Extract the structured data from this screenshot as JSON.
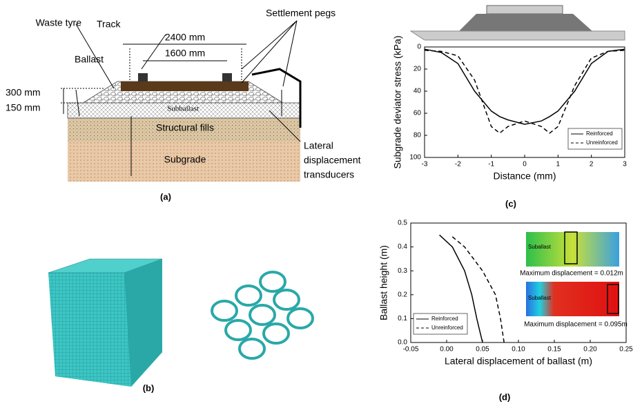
{
  "panel_a": {
    "label": "(a)",
    "track": "Track",
    "settlement_pegs": "Settlement pegs",
    "waste_tyre": "Waste tyre",
    "width_outer": "2400 mm",
    "width_inner": "1600 mm",
    "ballast": "Ballast",
    "depth_ballast": "300 mm",
    "depth_subballast": "150 mm",
    "subballast": "Subballast",
    "structural_fills": "Structural fills",
    "subgrade": "Subgrade",
    "transducers": [
      "Lateral",
      "displacement",
      "transducers"
    ]
  },
  "panel_b": {
    "label": "(b)"
  },
  "chart_data": [
    {
      "type": "line",
      "panel": "(c)",
      "x_label": "Distance (mm)",
      "y_label": "Subgrade deviator stress (kPa)",
      "x": [
        -3,
        -2.5,
        -2,
        -1.5,
        -1,
        -0.75,
        -0.5,
        0,
        0.5,
        0.75,
        1,
        1.5,
        2,
        2.5,
        3
      ],
      "series": [
        {
          "name": "Reinforced",
          "color": "#000000",
          "line_style": "solid",
          "values": [
            2,
            5,
            15,
            40,
            58,
            63,
            66,
            70,
            67,
            63,
            58,
            40,
            15,
            4,
            2
          ]
        },
        {
          "name": "Unreinforced",
          "color": "#000000",
          "line_style": "dashed",
          "values": [
            3,
            4,
            8,
            30,
            72,
            78,
            72,
            67,
            72,
            78,
            72,
            35,
            10,
            4,
            3
          ]
        }
      ],
      "xlim": [
        -3,
        3
      ],
      "xticks": [
        -3,
        -2,
        -1,
        0,
        1,
        2,
        3
      ],
      "ylim": [
        100,
        0
      ],
      "yticks": [
        0,
        20,
        40,
        60,
        80,
        100
      ],
      "legend": "lower right"
    },
    {
      "type": "line",
      "panel": "(d)",
      "x_label": "Lateral displacement of ballast (m)",
      "y_label": "Ballast height (m)",
      "y": [
        0,
        0.1,
        0.2,
        0.3,
        0.4,
        0.45
      ],
      "series": [
        {
          "name": "Reinforced",
          "color": "#000000",
          "line_style": "solid",
          "values": [
            0.05,
            0.042,
            0.035,
            0.025,
            0.008,
            -0.01
          ]
        },
        {
          "name": "Unreinforced",
          "color": "#000000",
          "line_style": "dashed",
          "values": [
            0.08,
            0.075,
            0.068,
            0.05,
            0.025,
            0.005
          ]
        }
      ],
      "xlim": [
        -0.05,
        0.25
      ],
      "xticks": [
        -0.05,
        {
          "value": 0,
          "label": "0.00"
        },
        0.05,
        {
          "value": 0.1,
          "label": "0.10"
        },
        0.15,
        {
          "value": 0.2,
          "label": "0.20"
        },
        0.25
      ],
      "ylim": [
        0,
        0.5
      ],
      "yticks": [
        {
          "value": 0,
          "label": "0.0"
        },
        0.1,
        0.2,
        0.3,
        0.4,
        0.5
      ],
      "legend": "lower left",
      "annotations": [
        "Suballast",
        "Maximum displacement = 0.012m",
        "Suballast",
        "Maximum displacement = 0.095m"
      ]
    }
  ]
}
